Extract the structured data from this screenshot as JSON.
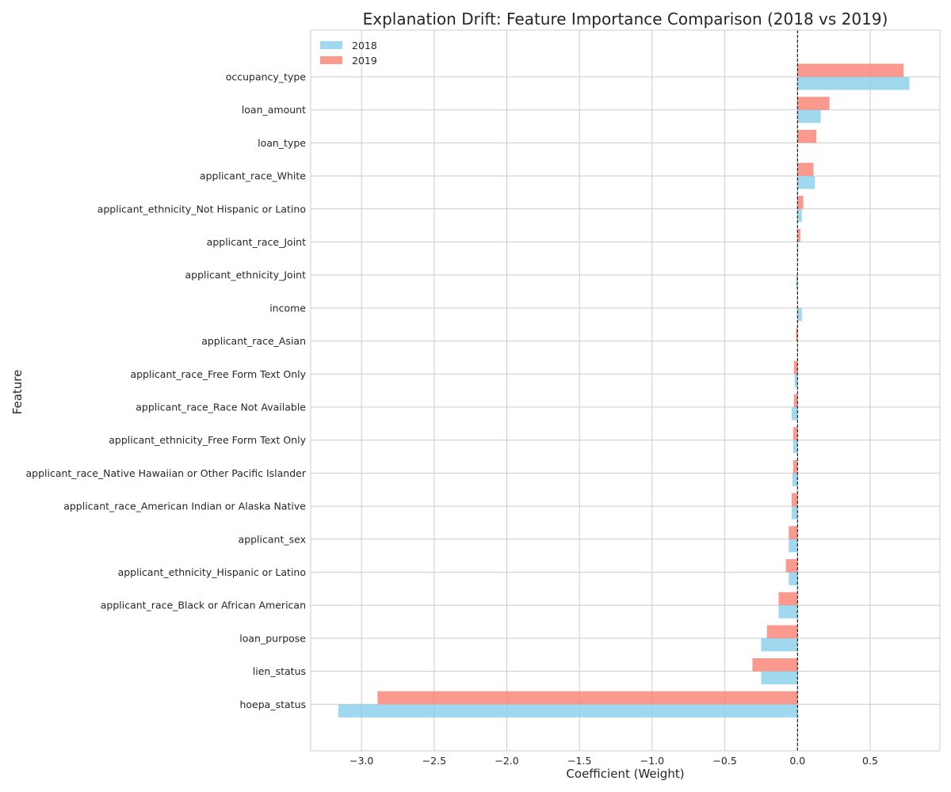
{
  "chart_data": {
    "type": "bar",
    "orientation": "horizontal",
    "title": "Explanation Drift: Feature Importance Comparison (2018 vs 2019)",
    "xlabel": "Coefficient (Weight)",
    "ylabel": "Feature",
    "xlim": [
      -3.35,
      0.98
    ],
    "xticks": [
      -3.0,
      -2.5,
      -2.0,
      -1.5,
      -1.0,
      -0.5,
      0.0,
      0.5
    ],
    "xtick_labels": [
      "−3.0",
      "−2.5",
      "−2.0",
      "−1.5",
      "−1.0",
      "−0.5",
      "0.0",
      "0.5"
    ],
    "grid": true,
    "legend_position": "top-left",
    "reference_line": {
      "x": 0,
      "style": "dashed",
      "color": "#000000"
    },
    "categories": [
      "occupancy_type",
      "loan_amount",
      "loan_type",
      "applicant_race_White",
      "applicant_ethnicity_Not Hispanic or Latino",
      "applicant_race_Joint",
      "applicant_ethnicity_Joint",
      "income",
      "applicant_race_Asian",
      "applicant_race_Free Form Text Only",
      "applicant_race_Race Not Available",
      "applicant_ethnicity_Free Form Text Only",
      "applicant_race_Native Hawaiian or Other Pacific Islander",
      "applicant_race_American Indian or Alaska Native",
      "applicant_sex",
      "applicant_ethnicity_Hispanic or Latino",
      "applicant_race_Black or African American",
      "loan_purpose",
      "lien_status",
      "hoepa_status"
    ],
    "series": [
      {
        "name": "2018",
        "color": "#87CEEB",
        "values": [
          0.77,
          0.16,
          0.0,
          0.12,
          0.03,
          0.005,
          -0.01,
          0.03,
          0.0,
          -0.02,
          -0.04,
          -0.03,
          -0.035,
          -0.04,
          -0.06,
          -0.06,
          -0.13,
          -0.25,
          -0.25,
          -3.16
        ]
      },
      {
        "name": "2019",
        "color": "#FA8072",
        "values": [
          0.73,
          0.22,
          0.13,
          0.11,
          0.04,
          0.02,
          0.0,
          0.0,
          -0.01,
          -0.025,
          -0.025,
          -0.03,
          -0.03,
          -0.04,
          -0.06,
          -0.08,
          -0.13,
          -0.21,
          -0.31,
          -2.89
        ]
      }
    ]
  }
}
